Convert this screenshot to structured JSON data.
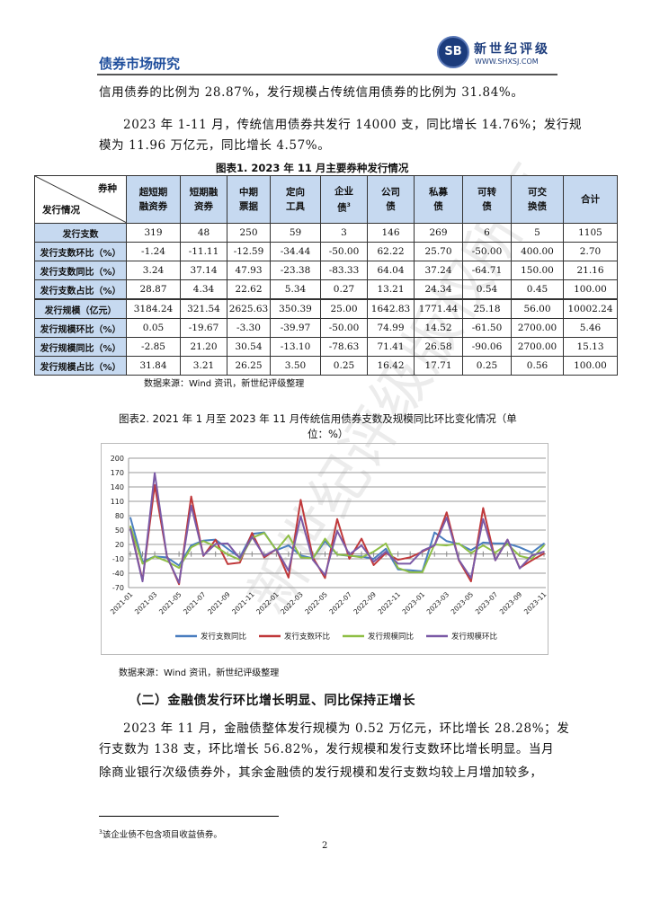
{
  "header": {
    "title": "债券市场研究",
    "logo_mark": "SB",
    "logo_name": "新世纪评级",
    "logo_url": "WWW.SHXSJ.COM"
  },
  "paras": {
    "p1": "信用债券的比例为 28.87%，发行规模占传统信用债券的比例为 31.84%。",
    "p2a": "2023 年 1-11 月，传统信用债券共发行 14000 支，同比增长 14.76%；发行规",
    "p2b": "模为 11.96 万亿元，同比增长 4.57%。"
  },
  "table1": {
    "caption": "图表1.    2023 年 11 月主要券种发行情况",
    "corner_top": "券种",
    "corner_bottom": "发行情况",
    "columns": [
      [
        "超短期",
        "融资券"
      ],
      [
        "短期融",
        "资券"
      ],
      [
        "中期",
        "票据"
      ],
      [
        "定向",
        "工具"
      ],
      [
        "企业",
        "债"
      ],
      [
        "公司",
        "债"
      ],
      [
        "私募",
        "债"
      ],
      [
        "可转",
        "债"
      ],
      [
        "可交",
        "换债"
      ],
      [
        "合计",
        ""
      ]
    ],
    "footnote_mark": "3",
    "rows": [
      {
        "label": "发行支数",
        "values": [
          "319",
          "48",
          "250",
          "59",
          "3",
          "146",
          "269",
          "6",
          "5",
          "1105"
        ]
      },
      {
        "label": "发行支数环比（%）",
        "values": [
          "-1.24",
          "-11.11",
          "-12.59",
          "-34.44",
          "-50.00",
          "62.22",
          "25.70",
          "-50.00",
          "400.00",
          "2.70"
        ]
      },
      {
        "label": "发行支数同比（%）",
        "values": [
          "3.24",
          "37.14",
          "47.93",
          "-23.38",
          "-83.33",
          "64.04",
          "37.24",
          "-64.71",
          "150.00",
          "21.16"
        ]
      },
      {
        "label": "发行支数占比（%）",
        "values": [
          "28.87",
          "4.34",
          "22.62",
          "5.34",
          "0.27",
          "13.21",
          "24.34",
          "0.54",
          "0.45",
          "100.00"
        ]
      },
      {
        "label": "发行规模（亿元）",
        "values": [
          "3184.24",
          "321.54",
          "2625.63",
          "350.39",
          "25.00",
          "1642.83",
          "1771.44",
          "25.18",
          "56.00",
          "10002.24"
        ]
      },
      {
        "label": "发行规模环比（%）",
        "values": [
          "0.05",
          "-19.67",
          "-3.30",
          "-39.97",
          "-50.00",
          "74.99",
          "14.52",
          "-61.50",
          "2700.00",
          "5.46"
        ]
      },
      {
        "label": "发行规模同比（%）",
        "values": [
          "-2.85",
          "21.20",
          "30.54",
          "-13.10",
          "-78.63",
          "71.41",
          "26.58",
          "-90.06",
          "2700.00",
          "15.13"
        ]
      },
      {
        "label": "发行规模占比（%）",
        "values": [
          "31.84",
          "3.21",
          "26.25",
          "3.50",
          "0.25",
          "16.42",
          "17.71",
          "0.25",
          "0.56",
          "100.00"
        ]
      }
    ],
    "source": "数据来源：Wind 资讯，新世纪评级整理"
  },
  "chart_caption_1": "图表2.    2021 年 1 月至 2023 年 11 月传统信用债券支数及规模同比环比变化情况（单",
  "chart_caption_2": "位：%）",
  "chart_data": {
    "type": "line",
    "title": "",
    "ylim": [
      -70,
      200
    ],
    "yticks": [
      "200",
      "170",
      "140",
      "110",
      "80",
      "50",
      "20",
      "-10",
      "-40",
      "-70"
    ],
    "x": [
      "2021-01",
      "2021-02",
      "2021-03",
      "2021-04",
      "2021-05",
      "2021-06",
      "2021-07",
      "2021-08",
      "2021-09",
      "2021-10",
      "2021-11",
      "2021-12",
      "2022-01",
      "2022-02",
      "2022-03",
      "2022-04",
      "2022-05",
      "2022-06",
      "2022-07",
      "2022-08",
      "2022-09",
      "2022-10",
      "2022-11",
      "2022-12",
      "2023-01",
      "2023-02",
      "2023-03",
      "2023-04",
      "2023-05",
      "2023-06",
      "2023-07",
      "2023-08",
      "2023-09",
      "2023-10",
      "2023-11"
    ],
    "xtick_labels": [
      "2021-01",
      "2021-03",
      "2021-05",
      "2021-07",
      "2021-09",
      "2021-11",
      "2022-01",
      "2022-03",
      "2022-05",
      "2022-07",
      "2022-09",
      "2022-11",
      "2023-01",
      "2023-03",
      "2023-05",
      "2023-07",
      "2023-09",
      "2023-11"
    ],
    "grid": true,
    "legend": "bottom",
    "series": [
      {
        "name": "发行支数同比",
        "color": "#4a7ebf",
        "values": [
          76,
          -16,
          -5,
          -7,
          -24,
          18,
          28,
          30,
          11,
          -7,
          42,
          45,
          8,
          18,
          -3,
          -9,
          27,
          -1,
          -4,
          -5,
          -10,
          11,
          -32,
          -34,
          -36,
          45,
          27,
          21,
          8,
          24,
          22,
          22,
          14,
          3,
          22
        ]
      },
      {
        "name": "发行支数环比",
        "color": "#c0393b",
        "values": [
          55,
          -55,
          144,
          -4,
          -63,
          120,
          -4,
          30,
          -21,
          -18,
          44,
          -7,
          10,
          -49,
          113,
          -7,
          -50,
          73,
          -10,
          32,
          -23,
          2,
          -12,
          -7,
          5,
          18,
          87,
          -13,
          -57,
          96,
          -13,
          30,
          -29,
          -13,
          1
        ]
      },
      {
        "name": "发行规模同比",
        "color": "#8fbf46",
        "values": [
          58,
          -20,
          -5,
          -15,
          -29,
          14,
          27,
          16,
          -1,
          -12,
          34,
          44,
          8,
          39,
          -7,
          -9,
          32,
          -1,
          -3,
          -7,
          5,
          22,
          -29,
          -38,
          -38,
          20,
          18,
          22,
          2,
          18,
          3,
          21,
          -4,
          -10,
          18
        ]
      },
      {
        "name": "发行规模环比",
        "color": "#7b5aa6",
        "values": [
          52,
          -57,
          169,
          -5,
          -60,
          101,
          -3,
          21,
          22,
          -9,
          36,
          -4,
          10,
          -35,
          79,
          -12,
          -44,
          48,
          -1,
          18,
          -16,
          5,
          -20,
          -20,
          7,
          18,
          76,
          -12,
          -50,
          73,
          -13,
          30,
          -30,
          -3,
          5
        ]
      }
    ]
  },
  "chart_source": "数据来源：Wind 资讯，新世纪评级整理",
  "section": {
    "heading": "（二）金融债发行环比增长明显、同比保持正增长",
    "l1": "2023 年 11 月，金融债整体发行规模为 0.52 万亿元，环比增长 28.28%；发",
    "l2": "行支数为 138 支，环比增长 56.82%，发行规模和发行支数环比增长明显。当月",
    "l3": "除商业银行次级债券外，其余金融债的发行规模和发行支数均较上月增加较多，"
  },
  "footnote": {
    "mark": "3",
    "text": "该企业债不包含项目收益债券。"
  },
  "page_number": "2",
  "watermark": "新世纪评级版权所有"
}
